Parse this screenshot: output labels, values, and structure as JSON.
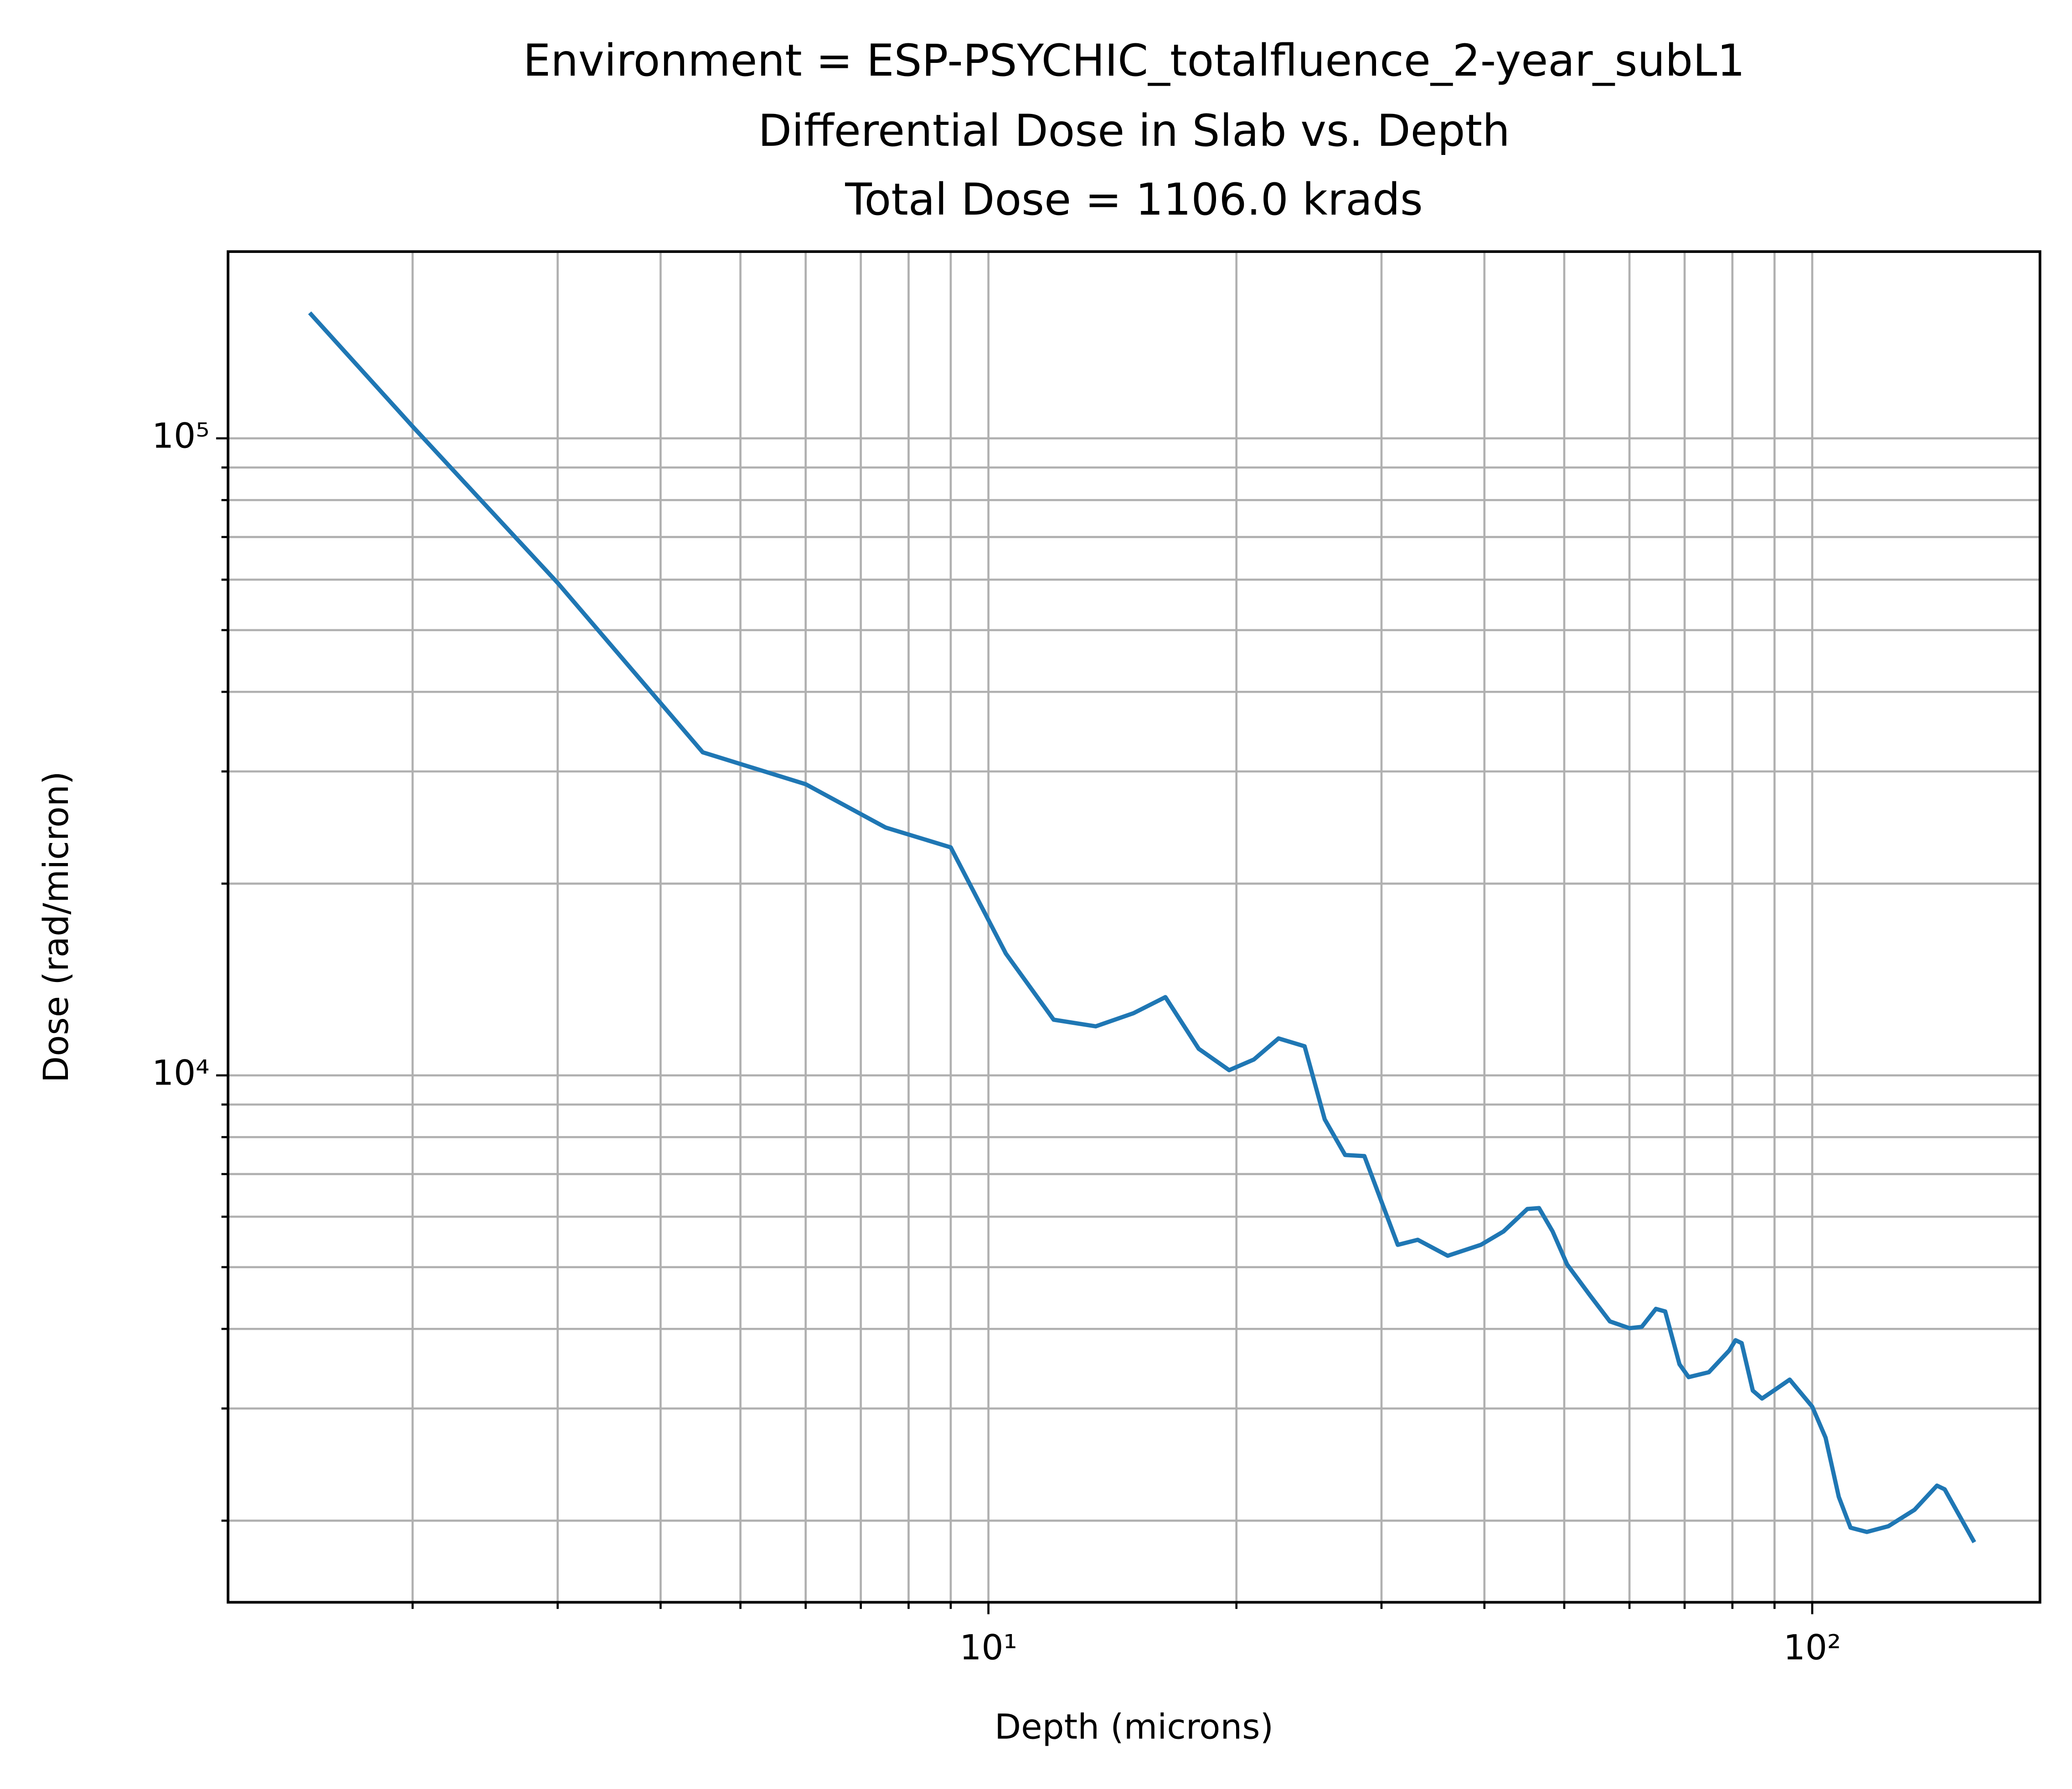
{
  "chart_data": {
    "type": "line",
    "title": [
      "Environment = ESP-PSYCHIC_totalfluence_2-year_subL1",
      "Differential Dose in Slab vs. Depth",
      "Total Dose = 1106.0 krads"
    ],
    "x_label": "Depth (microns)",
    "y_label": "Dose (rad/micron)",
    "xscale": "log",
    "yscale": "log",
    "grid": true,
    "xlim": [
      1.194,
      189
    ],
    "ylim": [
      1489,
      196400
    ],
    "xticks": [
      {
        "value": 10,
        "label": "10¹"
      },
      {
        "value": 100,
        "label": "10²"
      }
    ],
    "yticks": [
      {
        "value": 10000,
        "label": "10⁴"
      },
      {
        "value": 100000,
        "label": "10⁵"
      }
    ],
    "xminorticks": [
      2,
      3,
      4,
      5,
      6,
      7,
      8,
      9,
      20,
      30,
      40,
      50,
      60,
      70,
      80,
      90
    ],
    "yminorticks": [
      2000,
      3000,
      4000,
      5000,
      6000,
      7000,
      8000,
      9000,
      20000,
      30000,
      40000,
      50000,
      60000,
      70000,
      80000,
      90000
    ],
    "series": [
      {
        "color": "#1f77b4",
        "x": [
          1.5,
          2.0,
          3.0,
          4.5,
          6.0,
          7.5,
          9.0,
          10.5,
          12.0,
          13.5,
          15.0,
          16.4,
          18.0,
          19.6,
          21.0,
          22.5,
          24.2,
          25.6,
          27.1,
          28.6,
          29.9,
          31.4,
          33.2,
          36.1,
          39.6,
          42.2,
          45.1,
          46.6,
          48.4,
          50.4,
          53.7,
          56.8,
          60.0,
          62.1,
          64.6,
          66.3,
          69.0,
          70.8,
          74.9,
          79.3,
          80.7,
          82.1,
          84.7,
          86.9,
          89.8,
          93.9,
          100,
          103.8,
          107.7,
          111.3,
          116.5,
          123.7,
          133.1,
          141.7,
          144.8,
          157.3
        ],
        "values": [
          157400,
          104400,
          59300,
          32150,
          28650,
          24500,
          22800,
          15530,
          12230,
          11940,
          12520,
          13270,
          11010,
          10190,
          10590,
          11430,
          11110,
          8530,
          7500,
          7470,
          6410,
          5420,
          5520,
          5210,
          5420,
          5690,
          6170,
          6190,
          5690,
          5050,
          4520,
          4110,
          4010,
          4030,
          4300,
          4260,
          3520,
          3360,
          3420,
          3700,
          3840,
          3800,
          3200,
          3110,
          3200,
          3330,
          3020,
          2700,
          2180,
          1950,
          1920,
          1960,
          2080,
          2270,
          2240,
          1850
        ]
      }
    ]
  }
}
